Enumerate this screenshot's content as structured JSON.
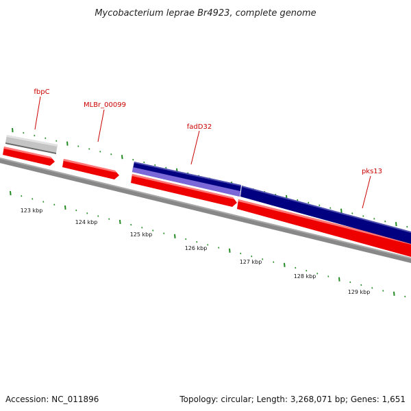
{
  "title": "Mycobacterium leprae Br4923, complete genome",
  "accession_text": "Accession: NC_011896",
  "topology_text": "Topology: circular; Length: 3,268,071 bp; Genes: 1,651",
  "colors": {
    "gene_red": "#ee0000",
    "gene_red_light": "#ff7777",
    "gene_blue": "#000080",
    "gene_blue_light": "#7b68d8",
    "gene_gray": "#b8b8b8",
    "backbone": "#777777",
    "tick": "#228b22",
    "label": "#cc0000"
  },
  "scale_labels": [
    "123 kbp",
    "124 kbp",
    "125 kbp",
    "126 kbp",
    "127 kbp",
    "128 kbp",
    "129 kbp"
  ],
  "gene_labels": [
    {
      "name": "fbpC"
    },
    {
      "name": "MLBr_00099"
    },
    {
      "name": "fadD32"
    },
    {
      "name": "pks13"
    }
  ]
}
